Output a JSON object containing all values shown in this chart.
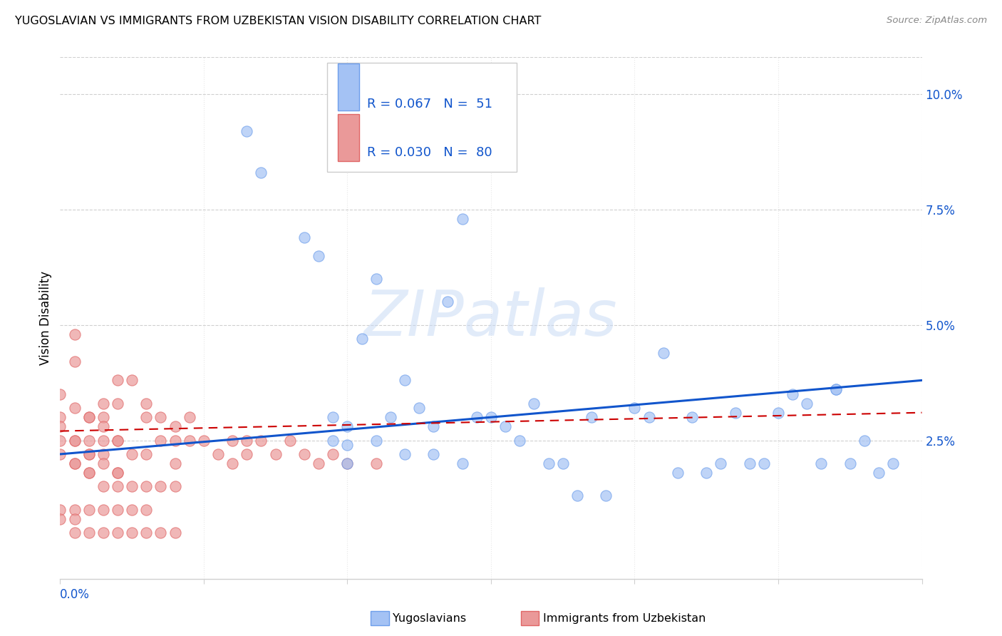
{
  "title": "YUGOSLAVIAN VS IMMIGRANTS FROM UZBEKISTAN VISION DISABILITY CORRELATION CHART",
  "source": "Source: ZipAtlas.com",
  "ylabel": "Vision Disability",
  "xlim": [
    0.0,
    0.3
  ],
  "ylim": [
    -0.005,
    0.108
  ],
  "blue_color": "#a4c2f4",
  "blue_edge_color": "#6d9eeb",
  "pink_color": "#ea9999",
  "pink_edge_color": "#e06666",
  "blue_line_color": "#1155cc",
  "pink_line_color": "#cc0000",
  "watermark_color": "#c9daf8",
  "legend_text_color": "#1155cc",
  "ytick_color": "#1155cc",
  "xtick_color": "#1155cc",
  "blue_scatter_x": [
    0.065,
    0.07,
    0.085,
    0.09,
    0.095,
    0.095,
    0.1,
    0.1,
    0.105,
    0.11,
    0.115,
    0.12,
    0.125,
    0.13,
    0.135,
    0.14,
    0.145,
    0.15,
    0.155,
    0.16,
    0.165,
    0.17,
    0.175,
    0.18,
    0.185,
    0.19,
    0.2,
    0.205,
    0.21,
    0.215,
    0.22,
    0.225,
    0.23,
    0.235,
    0.24,
    0.245,
    0.25,
    0.255,
    0.26,
    0.265,
    0.27,
    0.275,
    0.28,
    0.285,
    0.29,
    0.1,
    0.11,
    0.12,
    0.13,
    0.14,
    0.27
  ],
  "blue_scatter_y": [
    0.092,
    0.083,
    0.069,
    0.065,
    0.03,
    0.025,
    0.028,
    0.024,
    0.047,
    0.06,
    0.03,
    0.022,
    0.032,
    0.028,
    0.055,
    0.073,
    0.03,
    0.03,
    0.028,
    0.025,
    0.033,
    0.02,
    0.02,
    0.013,
    0.03,
    0.013,
    0.032,
    0.03,
    0.044,
    0.018,
    0.03,
    0.018,
    0.02,
    0.031,
    0.02,
    0.02,
    0.031,
    0.035,
    0.033,
    0.02,
    0.036,
    0.02,
    0.025,
    0.018,
    0.02,
    0.02,
    0.025,
    0.038,
    0.022,
    0.02,
    0.036
  ],
  "pink_scatter_x": [
    0.0,
    0.0,
    0.005,
    0.005,
    0.005,
    0.005,
    0.01,
    0.01,
    0.01,
    0.01,
    0.015,
    0.015,
    0.015,
    0.015,
    0.02,
    0.02,
    0.02,
    0.02,
    0.025,
    0.025,
    0.03,
    0.03,
    0.03,
    0.035,
    0.035,
    0.04,
    0.04,
    0.04,
    0.045,
    0.045,
    0.05,
    0.055,
    0.06,
    0.06,
    0.065,
    0.065,
    0.07,
    0.075,
    0.08,
    0.085,
    0.09,
    0.095,
    0.1,
    0.11,
    0.0,
    0.005,
    0.01,
    0.015,
    0.02,
    0.025,
    0.03,
    0.035,
    0.04,
    0.0,
    0.005,
    0.01,
    0.015,
    0.02,
    0.025,
    0.03,
    0.0,
    0.005,
    0.01,
    0.015,
    0.02,
    0.0,
    0.005,
    0.01,
    0.015,
    0.02,
    0.0,
    0.005,
    0.005,
    0.01,
    0.015,
    0.02,
    0.025,
    0.03,
    0.035,
    0.04
  ],
  "pink_scatter_y": [
    0.03,
    0.025,
    0.048,
    0.042,
    0.025,
    0.02,
    0.03,
    0.025,
    0.022,
    0.018,
    0.033,
    0.03,
    0.025,
    0.022,
    0.038,
    0.033,
    0.025,
    0.018,
    0.038,
    0.022,
    0.033,
    0.03,
    0.022,
    0.03,
    0.025,
    0.028,
    0.025,
    0.02,
    0.03,
    0.025,
    0.025,
    0.022,
    0.025,
    0.02,
    0.025,
    0.022,
    0.025,
    0.022,
    0.025,
    0.022,
    0.02,
    0.022,
    0.02,
    0.02,
    0.022,
    0.02,
    0.018,
    0.015,
    0.015,
    0.015,
    0.015,
    0.015,
    0.015,
    0.01,
    0.01,
    0.01,
    0.01,
    0.01,
    0.01,
    0.01,
    0.028,
    0.025,
    0.022,
    0.02,
    0.018,
    0.035,
    0.032,
    0.03,
    0.028,
    0.025,
    0.008,
    0.008,
    0.005,
    0.005,
    0.005,
    0.005,
    0.005,
    0.005,
    0.005,
    0.005
  ],
  "blue_trend": [
    0.022,
    0.038
  ],
  "pink_trend": [
    0.027,
    0.031
  ],
  "grid_color": "#d0d0d0",
  "spine_color": "#d0d0d0"
}
